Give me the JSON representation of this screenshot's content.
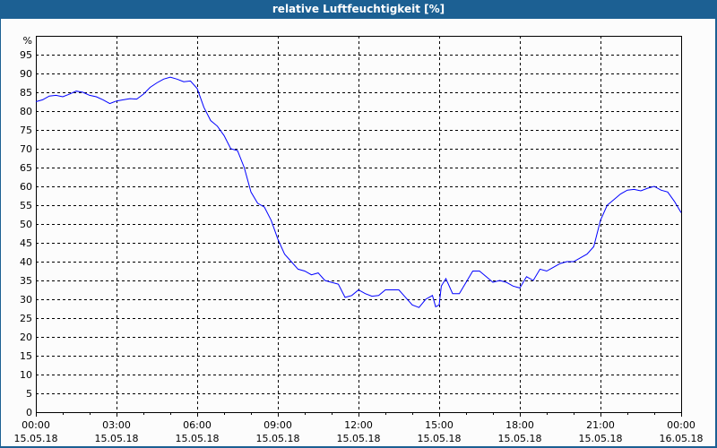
{
  "window": {
    "title": "relative Luftfeuchtigkeit [%]"
  },
  "chart_data": {
    "type": "line",
    "title": "relative Luftfeuchtigkeit [%]",
    "ylabel": "%",
    "ylim": [
      0,
      100
    ],
    "yticks": [
      0,
      5,
      10,
      15,
      20,
      25,
      30,
      35,
      40,
      45,
      50,
      55,
      60,
      65,
      70,
      75,
      80,
      85,
      90,
      95
    ],
    "xlim_hours": [
      0,
      24
    ],
    "xticks": [
      {
        "time": "00:00",
        "date": "15.05.18"
      },
      {
        "time": "03:00",
        "date": "15.05.18"
      },
      {
        "time": "06:00",
        "date": "15.05.18"
      },
      {
        "time": "09:00",
        "date": "15.05.18"
      },
      {
        "time": "12:00",
        "date": "15.05.18"
      },
      {
        "time": "15:00",
        "date": "15.05.18"
      },
      {
        "time": "18:00",
        "date": "15.05.18"
      },
      {
        "time": "21:00",
        "date": "15.05.18"
      },
      {
        "time": "00:00",
        "date": "16.05.18"
      }
    ],
    "grid": true,
    "line_color": "#0000ff",
    "series": [
      {
        "x_hours": [
          0,
          0.25,
          0.5,
          0.75,
          1,
          1.25,
          1.5,
          1.75,
          2,
          2.25,
          2.5,
          2.75,
          3,
          3.25,
          3.5,
          3.75,
          4,
          4.25,
          4.5,
          4.75,
          5,
          5.25,
          5.5,
          5.75,
          6,
          6.25,
          6.5,
          6.75,
          7,
          7.25,
          7.5,
          7.75,
          8,
          8.25,
          8.5,
          8.75,
          9,
          9.25,
          9.5,
          9.75,
          10,
          10.25,
          10.5,
          10.75,
          11,
          11.25,
          11.5,
          11.75,
          12,
          12.25,
          12.5,
          12.75,
          13,
          13.25,
          13.5,
          13.75,
          14,
          14.25,
          14.5,
          14.75,
          14.87,
          15,
          15.08,
          15.25,
          15.5,
          15.75,
          16,
          16.25,
          16.5,
          16.75,
          17,
          17.25,
          17.5,
          17.75,
          18,
          18.25,
          18.5,
          18.75,
          19,
          19.25,
          19.5,
          19.75,
          20,
          20.25,
          20.5,
          20.75,
          21,
          21.25,
          21.5,
          21.75,
          22,
          22.25,
          22.5,
          22.75,
          23,
          23.25,
          23.5,
          23.75,
          24
        ],
        "values": [
          82.5,
          83,
          84,
          84.2,
          83.8,
          84.5,
          85.3,
          85,
          84.2,
          83.8,
          83,
          82,
          82.7,
          83,
          83.3,
          83.2,
          84.5,
          86.3,
          87.5,
          88.5,
          89,
          88.5,
          87.8,
          88,
          86,
          81,
          77.5,
          76,
          73.5,
          70,
          69.5,
          65,
          58.5,
          55.5,
          54.5,
          51,
          46,
          42,
          40,
          38,
          37.5,
          36.5,
          37,
          35,
          34.5,
          34,
          30.5,
          31,
          32.5,
          31.5,
          30.8,
          31,
          32.5,
          32.5,
          32.5,
          30.5,
          28.5,
          27.8,
          30,
          31,
          28,
          28.5,
          33.5,
          35.5,
          31.5,
          31.5,
          34.5,
          37.5,
          37.5,
          36,
          34.5,
          35,
          34.5,
          33.5,
          33,
          36,
          35,
          38,
          37.5,
          38.5,
          39.5,
          40,
          40,
          41,
          42,
          44,
          51,
          55,
          56.5,
          58,
          59,
          59.2,
          58.8,
          59.5,
          60,
          59,
          58.5,
          56,
          53
        ]
      }
    ]
  }
}
